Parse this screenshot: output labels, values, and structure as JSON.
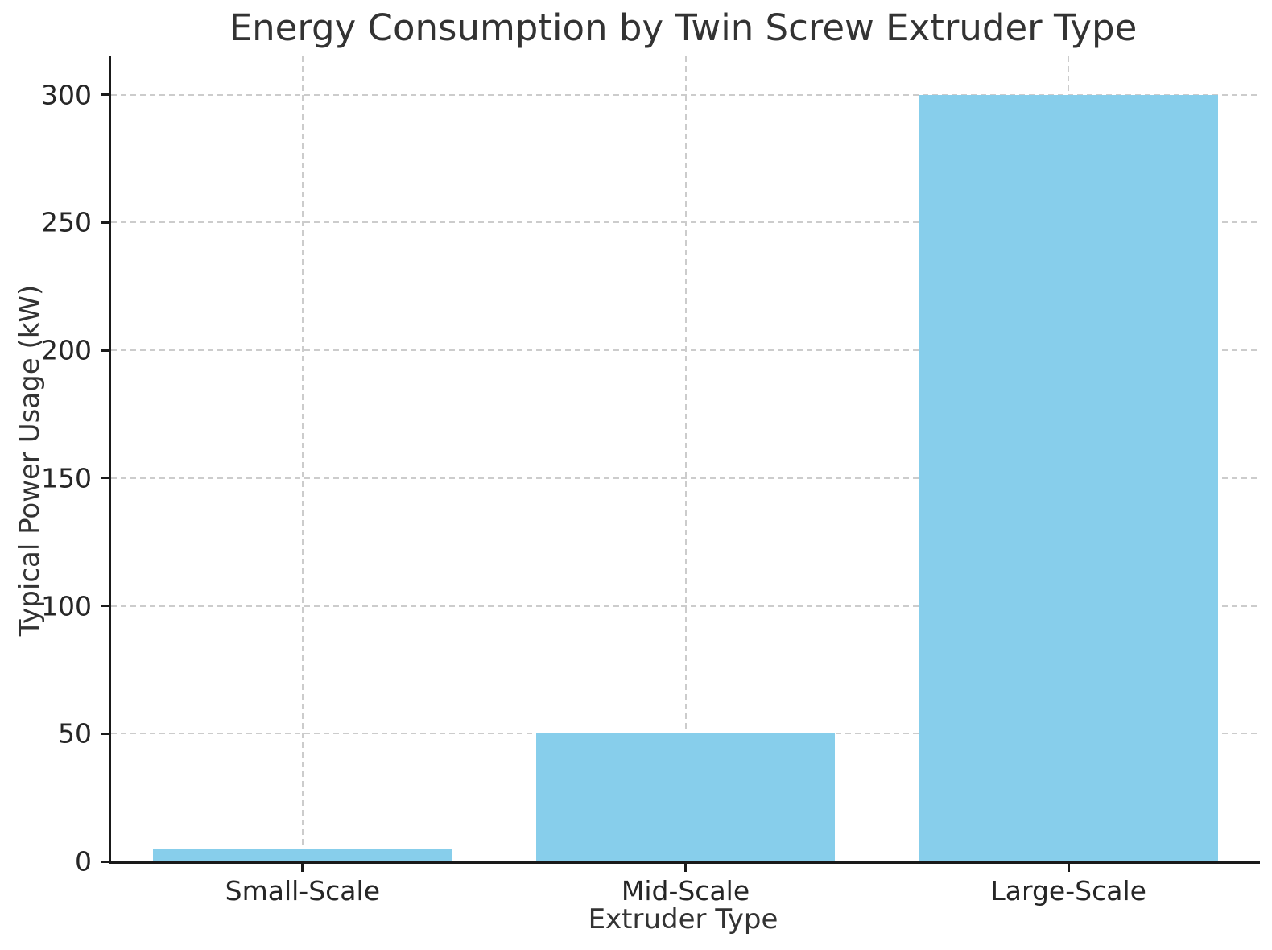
{
  "chart_data": {
    "type": "bar",
    "title": "Energy Consumption by Twin Screw Extruder Type",
    "xlabel": "Extruder Type",
    "ylabel": "Typical Power Usage (kW)",
    "categories": [
      "Small-Scale",
      "Mid-Scale",
      "Large-Scale"
    ],
    "values": [
      5,
      50,
      300
    ],
    "ylim": [
      0,
      315
    ],
    "yticks": [
      0,
      50,
      100,
      150,
      200,
      250,
      300
    ],
    "bar_color": "#87CEEB",
    "bar_width_fraction": 0.78,
    "grid": "dashed",
    "grid_color": "#cccccc",
    "axis_color": "#1a1a1a",
    "tick_label_color": "#262626",
    "title_color": "#333333",
    "legend_position": "none",
    "background_color": "#ffffff"
  }
}
